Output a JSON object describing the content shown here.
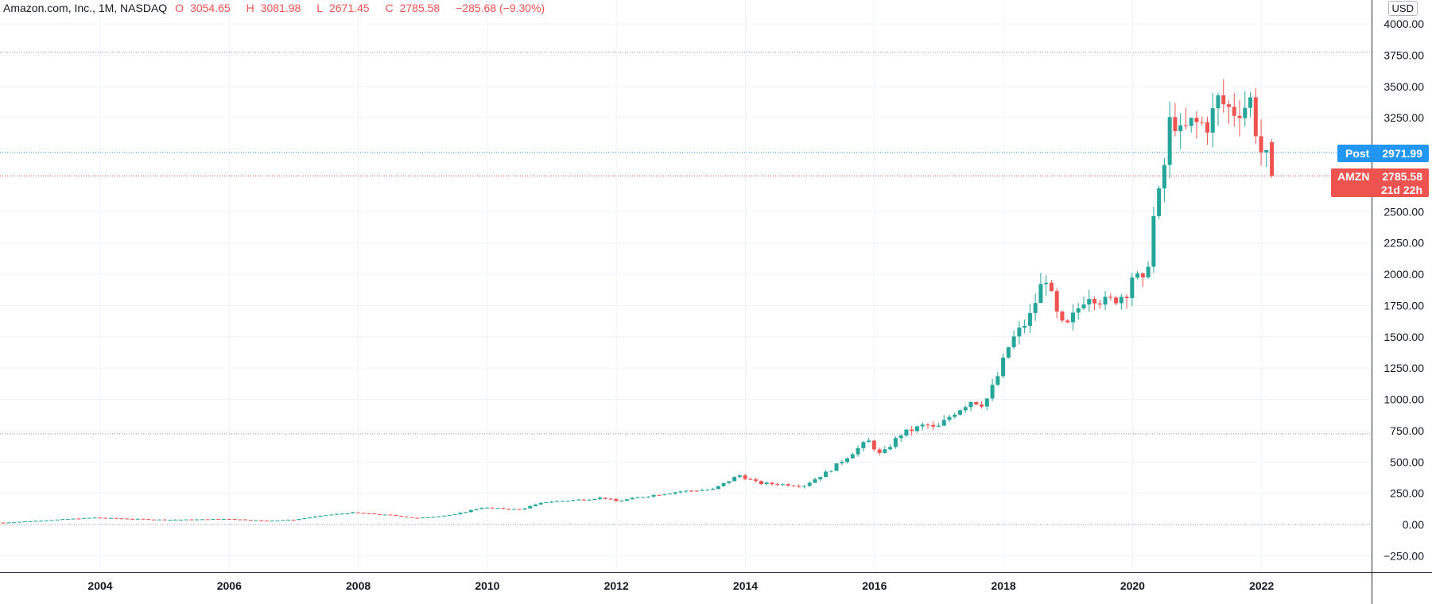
{
  "header": {
    "symbol": "Amazon.com, Inc., 1M, NASDAQ",
    "open_label": "O",
    "open": "3054.65",
    "high_label": "H",
    "high": "3081.98",
    "low_label": "L",
    "low": "2671.45",
    "close_label": "C",
    "close": "2785.58",
    "change": "−285.68 (−9.30%)"
  },
  "currency": "USD",
  "tags": {
    "post_label": "Post",
    "post_value": "2971.99",
    "last_label": "AMZN",
    "last_value": "2785.58",
    "countdown": "21d 22h"
  },
  "colors": {
    "up": "#26a69a",
    "down": "#ef5350",
    "post": "#2196f3",
    "grid": "#f0f3fa",
    "axis": "#131722"
  },
  "chart_data": {
    "type": "candlestick",
    "title": "Amazon.com, Inc., 1M, NASDAQ",
    "ylim": [
      -350,
      4100
    ],
    "yticks": [
      -250,
      0,
      250,
      500,
      750,
      1000,
      1250,
      1500,
      1750,
      2000,
      2250,
      2500,
      3250,
      3500,
      3750,
      4000
    ],
    "ytick_labels": [
      "−250.00",
      "0.00",
      "250.00",
      "500.00",
      "750.00",
      "1000.00",
      "1250.00",
      "1500.00",
      "1750.00",
      "2000.00",
      "2250.00",
      "2500.00",
      "3250.00",
      "3500.00",
      "3750.00",
      "4000.00"
    ],
    "xlim": [
      2002.5,
      2023.7
    ],
    "xticks": [
      2004,
      2006,
      2008,
      2010,
      2012,
      2014,
      2016,
      2018,
      2020,
      2022
    ],
    "xtick_labels": [
      "2004",
      "2006",
      "2008",
      "2010",
      "2012",
      "2014",
      "2016",
      "2018",
      "2020",
      "2022"
    ],
    "hlines": [
      3773,
      725,
      0
    ],
    "post_price": 2971.99,
    "last_price": 2785.58,
    "anchors": [
      [
        2002.5,
        15
      ],
      [
        2003.9,
        55
      ],
      [
        2004.5,
        45
      ],
      [
        2005.0,
        38
      ],
      [
        2005.5,
        40
      ],
      [
        2006.0,
        45
      ],
      [
        2006.5,
        30
      ],
      [
        2007.0,
        38
      ],
      [
        2007.5,
        75
      ],
      [
        2007.9,
        95
      ],
      [
        2008.5,
        75
      ],
      [
        2008.9,
        50
      ],
      [
        2009.5,
        80
      ],
      [
        2009.9,
        135
      ],
      [
        2010.5,
        120
      ],
      [
        2010.9,
        180
      ],
      [
        2011.5,
        200
      ],
      [
        2011.8,
        215
      ],
      [
        2012.0,
        185
      ],
      [
        2012.5,
        230
      ],
      [
        2013.0,
        265
      ],
      [
        2013.5,
        280
      ],
      [
        2013.9,
        395
      ],
      [
        2014.2,
        330
      ],
      [
        2014.6,
        320
      ],
      [
        2014.9,
        310
      ],
      [
        2015.3,
        430
      ],
      [
        2015.9,
        670
      ],
      [
        2016.1,
        550
      ],
      [
        2016.4,
        720
      ],
      [
        2016.8,
        800
      ],
      [
        2016.95,
        760
      ],
      [
        2017.2,
        880
      ],
      [
        2017.5,
        990
      ],
      [
        2017.7,
        960
      ],
      [
        2017.9,
        1170
      ],
      [
        2018.1,
        1450
      ],
      [
        2018.4,
        1650
      ],
      [
        2018.65,
        2000
      ],
      [
        2018.8,
        1700
      ],
      [
        2018.95,
        1550
      ],
      [
        2019.3,
        1850
      ],
      [
        2019.6,
        1770
      ],
      [
        2019.9,
        1850
      ],
      [
        2020.0,
        2000
      ],
      [
        2020.2,
        1900
      ],
      [
        2020.3,
        2400
      ],
      [
        2020.45,
        2700
      ],
      [
        2020.6,
        3300
      ],
      [
        2020.75,
        3100
      ],
      [
        2020.9,
        3200
      ],
      [
        2021.2,
        3200
      ],
      [
        2021.3,
        3400
      ],
      [
        2021.55,
        3300
      ],
      [
        2021.75,
        3350
      ],
      [
        2021.85,
        3400
      ],
      [
        2021.95,
        3000
      ],
      [
        2022.05,
        2950
      ],
      [
        2022.17,
        2785
      ]
    ],
    "month_step": 0.0833,
    "up_color": "#26a69a",
    "down_color": "#ef5350"
  }
}
